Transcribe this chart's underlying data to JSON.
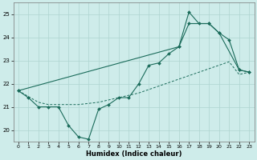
{
  "xlabel": "Humidex (Indice chaleur)",
  "background_color": "#ceecea",
  "grid_color": "#add4d0",
  "line_color": "#1a6b5a",
  "xlim": [
    -0.5,
    23.5
  ],
  "ylim": [
    19.5,
    25.5
  ],
  "xticks": [
    0,
    1,
    2,
    3,
    4,
    5,
    6,
    7,
    8,
    9,
    10,
    11,
    12,
    13,
    14,
    15,
    16,
    17,
    18,
    19,
    20,
    21,
    22,
    23
  ],
  "yticks": [
    20,
    21,
    22,
    23,
    24,
    25
  ],
  "line1_x": [
    0,
    1,
    2,
    3,
    4,
    5,
    6,
    7,
    8,
    9,
    10,
    11,
    12,
    13,
    14,
    15,
    16,
    17,
    18,
    19,
    20,
    21,
    22,
    23
  ],
  "line1_y": [
    21.7,
    21.4,
    21.0,
    21.0,
    21.0,
    20.2,
    19.7,
    19.6,
    20.9,
    21.1,
    21.4,
    21.4,
    22.0,
    22.8,
    22.9,
    23.3,
    23.6,
    25.1,
    24.6,
    24.6,
    24.2,
    23.9,
    22.6,
    22.5
  ],
  "line2_x": [
    0,
    1,
    2,
    3,
    4,
    5,
    6,
    7,
    8,
    9,
    10,
    11,
    12,
    13,
    14,
    15,
    16,
    17,
    18,
    19,
    20,
    21,
    22,
    23
  ],
  "line2_y": [
    21.7,
    21.45,
    21.2,
    21.1,
    21.1,
    21.1,
    21.1,
    21.15,
    21.2,
    21.3,
    21.4,
    21.5,
    21.6,
    21.75,
    21.9,
    22.05,
    22.2,
    22.35,
    22.5,
    22.65,
    22.8,
    22.95,
    22.4,
    22.5
  ],
  "line3_x": [
    0,
    16,
    17,
    19,
    20,
    22,
    23
  ],
  "line3_y": [
    21.7,
    23.6,
    24.6,
    24.6,
    24.2,
    22.6,
    22.5
  ]
}
